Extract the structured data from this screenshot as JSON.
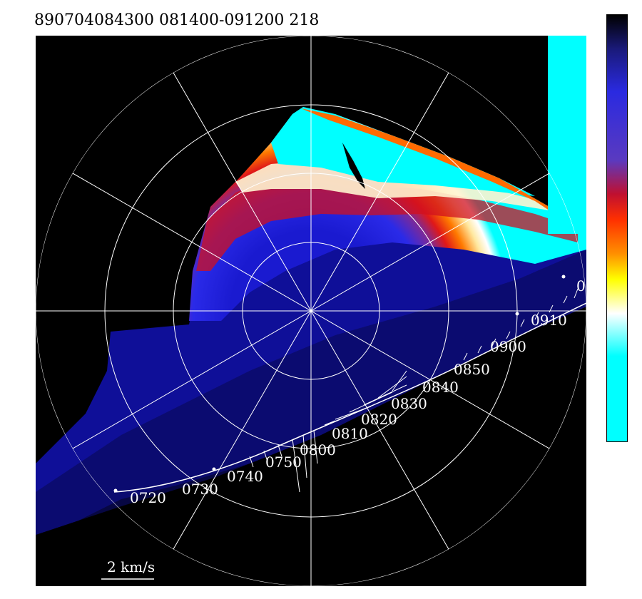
{
  "header": {
    "title": "890704084300 081400-091200 218"
  },
  "plot": {
    "scale_label": "2 km/s",
    "partial_label": "0",
    "time_labels": [
      "0720",
      "0730",
      "0740",
      "0750",
      "0800",
      "0810",
      "0820",
      "0830",
      "0840",
      "0850",
      "0900",
      "0910"
    ]
  },
  "colorbar": {
    "colors": [
      "#000000",
      "#1a1a7a",
      "#2a2ae0",
      "#5a3ac0",
      "#c01030",
      "#ff3000",
      "#ff9000",
      "#ffff00",
      "#ffffff",
      "#00ffff"
    ]
  }
}
